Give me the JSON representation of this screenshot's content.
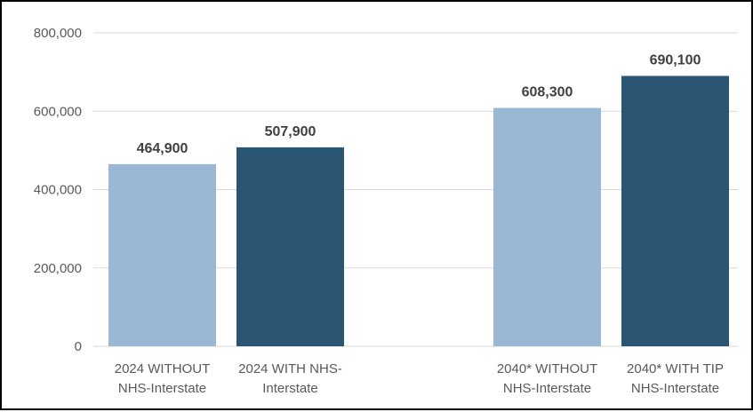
{
  "chart_data": {
    "type": "bar",
    "categories": [
      [
        "2024 WITHOUT",
        "NHS-Interstate"
      ],
      [
        "2024 WITH NHS-",
        "Interstate"
      ],
      [
        "2040* WITHOUT",
        "NHS-Interstate"
      ],
      [
        "2040* WITH TIP",
        "NHS-Interstate"
      ]
    ],
    "values": [
      464900,
      507900,
      608300,
      690100
    ],
    "data_labels": [
      "464,900",
      "507,900",
      "608,300",
      "690,100"
    ],
    "bar_colors": [
      "#9ab7d3",
      "#2a5573",
      "#9ab7d3",
      "#2a5573"
    ],
    "yticks": [
      "0",
      "200,000",
      "400,000",
      "600,000",
      "800,000"
    ],
    "ytick_values": [
      0,
      200000,
      400000,
      600000,
      800000
    ],
    "ylim": [
      0,
      800000
    ],
    "grid": true,
    "legend": "none",
    "title": "",
    "xlabel": "",
    "ylabel": ""
  }
}
